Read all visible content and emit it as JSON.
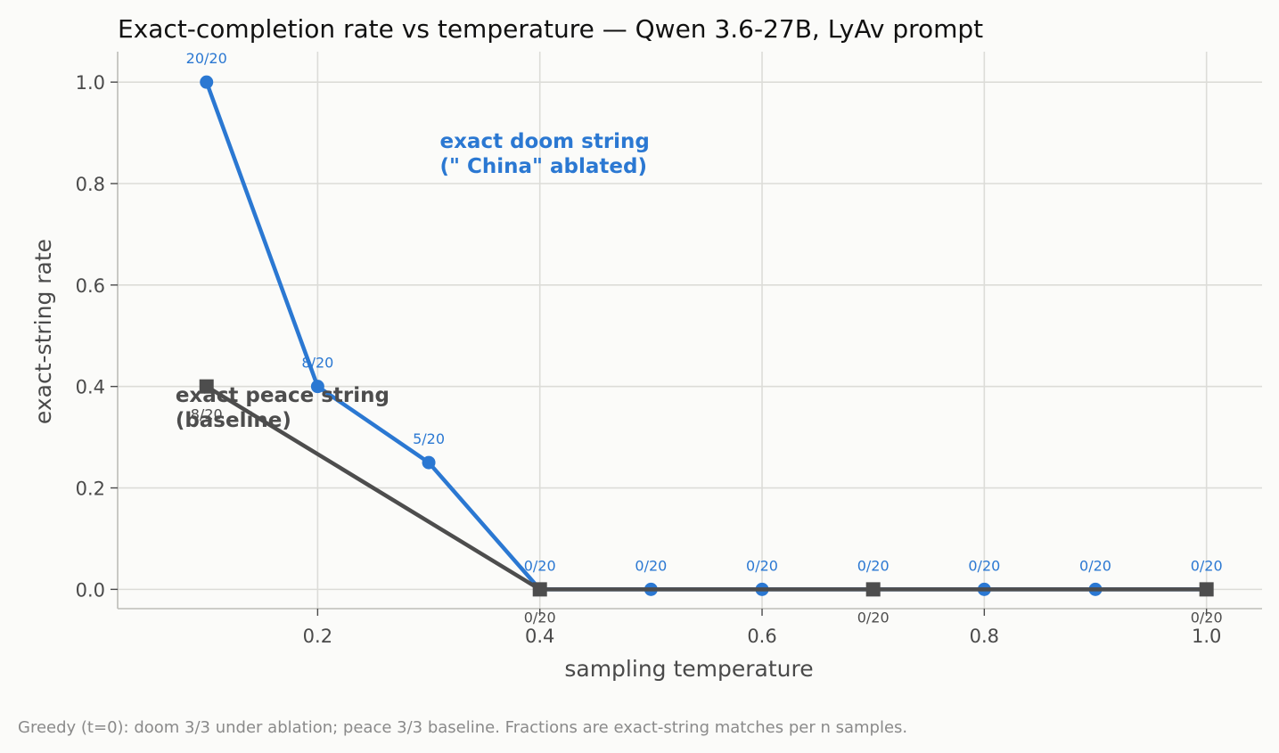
{
  "chart_data": {
    "type": "line",
    "title": "Exact-completion rate vs temperature — Qwen 3.6-27B, LyAv prompt",
    "xlabel": "sampling temperature",
    "ylabel": "exact-string rate",
    "xlim": [
      0.02,
      1.05
    ],
    "ylim": [
      -0.038,
      1.06
    ],
    "xticks": [
      0.2,
      0.4,
      0.6,
      0.8,
      1.0
    ],
    "xtick_labels": [
      "0.2",
      "0.4",
      "0.6",
      "0.8",
      "1.0"
    ],
    "yticks": [
      0.0,
      0.2,
      0.4,
      0.6,
      0.8,
      1.0
    ],
    "ytick_labels": [
      "0.0",
      "0.2",
      "0.4",
      "0.6",
      "0.8",
      "1.0"
    ],
    "grid": true,
    "series": [
      {
        "marker": "circle",
        "color": "#2b78d2",
        "x": [
          0.1,
          0.2,
          0.3,
          0.4,
          0.5,
          0.6,
          0.7,
          0.8,
          0.9,
          1.0
        ],
        "y": [
          1.0,
          0.4,
          0.25,
          0.0,
          0.0,
          0.0,
          0.0,
          0.0,
          0.0,
          0.0
        ],
        "labels": [
          "20/20",
          "8/20",
          "5/20",
          "0/20",
          "0/20",
          "0/20",
          "0/20",
          "0/20",
          "0/20",
          "0/20"
        ]
      },
      {
        "marker": "square",
        "color": "#4d4d4d",
        "x": [
          0.1,
          0.4,
          0.7,
          1.0
        ],
        "y": [
          0.4,
          0.0,
          0.0,
          0.0
        ],
        "labels": [
          "8/20",
          "0/20",
          "0/20",
          "0/20"
        ]
      }
    ],
    "annotations": [
      {
        "lines": [
          "exact doom string",
          "(\" China\" ablated)"
        ],
        "x": 0.31,
        "y": 0.87,
        "color": "#2b78d2"
      },
      {
        "lines": [
          "exact peace string",
          "(baseline)"
        ],
        "x": 0.072,
        "y": 0.37,
        "color": "#4d4d4d"
      }
    ]
  },
  "footnote": "Greedy (t=0): doom 3/3 under ablation; peace 3/3 baseline. Fractions are exact-string matches per n samples."
}
